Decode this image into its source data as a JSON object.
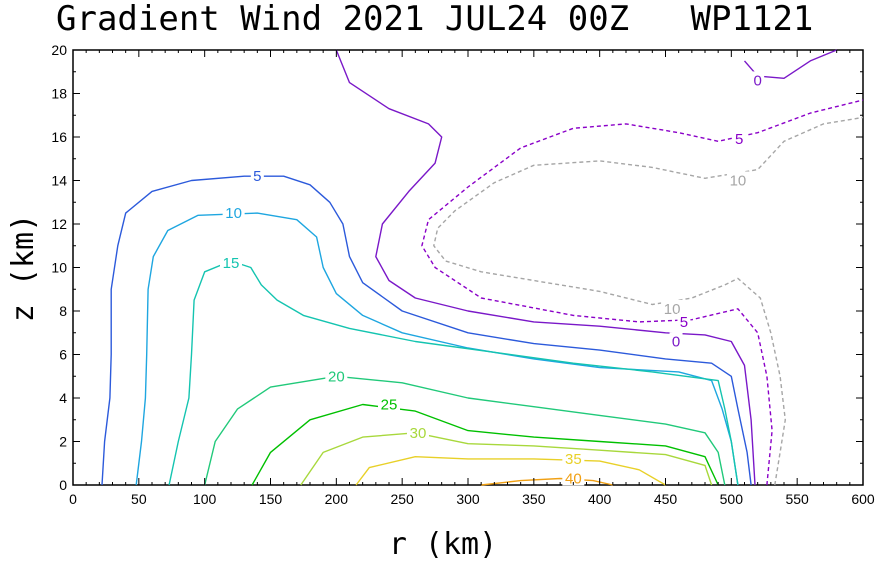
{
  "chart_data": {
    "type": "contour",
    "title": "Gradient Wind 2021 JUL24 00Z   WP1121",
    "xlabel": "r (km)",
    "ylabel": "z (km)",
    "xlim": [
      0,
      600
    ],
    "ylim": [
      0,
      20
    ],
    "x_ticks": [
      0,
      50,
      100,
      150,
      200,
      250,
      300,
      350,
      400,
      450,
      500,
      550,
      600
    ],
    "y_ticks": [
      0,
      2,
      4,
      6,
      8,
      10,
      12,
      14,
      16,
      18,
      20
    ],
    "grid": false,
    "contours": [
      {
        "level": -10,
        "label": "10",
        "color": "#a6a6a6",
        "dashed": true,
        "label_points": [
          [
            455,
            8.1
          ],
          [
            505,
            14.0
          ]
        ],
        "points": [
          [
            533,
            0
          ],
          [
            537,
            1.5
          ],
          [
            541,
            3
          ],
          [
            537,
            5
          ],
          [
            530,
            7
          ],
          [
            522,
            8.6
          ],
          [
            505,
            9.5
          ],
          [
            495,
            9.2
          ],
          [
            470,
            8.6
          ],
          [
            440,
            8.3
          ],
          [
            400,
            8.9
          ],
          [
            360,
            9.3
          ],
          [
            310,
            9.8
          ],
          [
            283,
            10.3
          ],
          [
            274,
            11
          ],
          [
            277,
            11.8
          ],
          [
            290,
            12.6
          ],
          [
            320,
            13.9
          ],
          [
            350,
            14.7
          ],
          [
            400,
            14.9
          ],
          [
            440,
            14.6
          ],
          [
            480,
            14.1
          ],
          [
            520,
            14.5
          ],
          [
            540,
            15.8
          ],
          [
            570,
            16.6
          ],
          [
            600,
            16.9
          ]
        ]
      },
      {
        "level": -5,
        "label": "5",
        "color": "#8a00c8",
        "dashed": true,
        "label_points": [
          [
            464,
            7.5
          ],
          [
            506,
            15.9
          ]
        ],
        "points": [
          [
            527,
            0
          ],
          [
            531,
            2.5
          ],
          [
            527,
            5
          ],
          [
            520,
            7
          ],
          [
            505,
            8.1
          ],
          [
            470,
            7.6
          ],
          [
            430,
            7.5
          ],
          [
            380,
            7.8
          ],
          [
            310,
            8.6
          ],
          [
            275,
            10.0
          ],
          [
            265,
            11.0
          ],
          [
            270,
            12.2
          ],
          [
            300,
            13.7
          ],
          [
            340,
            15.5
          ],
          [
            380,
            16.4
          ],
          [
            420,
            16.6
          ],
          [
            460,
            16.2
          ],
          [
            490,
            15.8
          ],
          [
            520,
            16.2
          ],
          [
            560,
            17.1
          ],
          [
            600,
            17.7
          ]
        ]
      },
      {
        "level": 0,
        "label": "0",
        "color": "#7a18c8",
        "dashed": false,
        "label_points": [
          [
            458,
            6.6
          ],
          [
            520,
            18.6
          ]
        ],
        "points": [
          [
            200,
            20
          ],
          [
            210,
            18.5
          ],
          [
            240,
            17.3
          ],
          [
            270,
            16.6
          ],
          [
            280,
            16.0
          ],
          [
            275,
            14.8
          ],
          [
            255,
            13.5
          ],
          [
            235,
            12.0
          ],
          [
            230,
            10.5
          ],
          [
            240,
            9.4
          ],
          [
            260,
            8.6
          ],
          [
            300,
            8.0
          ],
          [
            350,
            7.5
          ],
          [
            400,
            7.3
          ],
          [
            450,
            7.0
          ],
          [
            480,
            6.9
          ],
          [
            500,
            6.6
          ],
          [
            510,
            5.5
          ],
          [
            515,
            3.0
          ],
          [
            518,
            0
          ],
          null,
          [
            510,
            19.5
          ],
          [
            520,
            18.8
          ],
          [
            540,
            18.7
          ],
          [
            560,
            19.5
          ],
          [
            580,
            20
          ]
        ]
      },
      {
        "level": 5,
        "label": "5",
        "color": "#2c5adb",
        "dashed": false,
        "label_points": [
          [
            140,
            14.2
          ]
        ],
        "points": [
          [
            22,
            0
          ],
          [
            24,
            2
          ],
          [
            28,
            4
          ],
          [
            29,
            6
          ],
          [
            29,
            9
          ],
          [
            34,
            11
          ],
          [
            40,
            12.5
          ],
          [
            60,
            13.5
          ],
          [
            90,
            14.0
          ],
          [
            130,
            14.2
          ],
          [
            160,
            14.2
          ],
          [
            180,
            13.8
          ],
          [
            195,
            13.0
          ],
          [
            205,
            12.0
          ],
          [
            210,
            10.5
          ],
          [
            220,
            9.3
          ],
          [
            250,
            8.0
          ],
          [
            300,
            7.0
          ],
          [
            350,
            6.5
          ],
          [
            400,
            6.2
          ],
          [
            450,
            5.8
          ],
          [
            485,
            5.6
          ],
          [
            500,
            5.0
          ],
          [
            505,
            3.5
          ],
          [
            512,
            1.5
          ],
          [
            515,
            0
          ]
        ]
      },
      {
        "level": 10,
        "label": "10",
        "color": "#1ea6e0",
        "dashed": false,
        "label_points": [
          [
            122,
            12.5
          ]
        ],
        "points": [
          [
            48,
            0
          ],
          [
            52,
            2
          ],
          [
            55,
            4
          ],
          [
            56,
            6
          ],
          [
            57,
            9
          ],
          [
            61,
            10.5
          ],
          [
            72,
            11.7
          ],
          [
            95,
            12.4
          ],
          [
            140,
            12.5
          ],
          [
            170,
            12.2
          ],
          [
            185,
            11.4
          ],
          [
            190,
            10.0
          ],
          [
            200,
            8.8
          ],
          [
            220,
            7.8
          ],
          [
            250,
            7.0
          ],
          [
            300,
            6.3
          ],
          [
            350,
            5.8
          ],
          [
            400,
            5.4
          ],
          [
            460,
            5.2
          ],
          [
            485,
            4.8
          ],
          [
            493,
            3.5
          ],
          [
            500,
            2.0
          ],
          [
            505,
            0
          ]
        ]
      },
      {
        "level": 15,
        "label": "15",
        "color": "#14c4b0",
        "dashed": false,
        "label_points": [
          [
            120,
            10.2
          ]
        ],
        "points": [
          [
            73,
            0
          ],
          [
            80,
            2
          ],
          [
            88,
            4
          ],
          [
            90,
            6
          ],
          [
            92,
            8.5
          ],
          [
            100,
            9.8
          ],
          [
            120,
            10.3
          ],
          [
            135,
            10.0
          ],
          [
            143,
            9.2
          ],
          [
            155,
            8.5
          ],
          [
            175,
            7.8
          ],
          [
            210,
            7.2
          ],
          [
            260,
            6.6
          ],
          [
            320,
            6.1
          ],
          [
            380,
            5.6
          ],
          [
            440,
            5.2
          ],
          [
            490,
            4.8
          ],
          [
            495,
            3.5
          ],
          [
            500,
            2.0
          ],
          [
            505,
            0
          ]
        ]
      },
      {
        "level": 20,
        "label": "20",
        "color": "#21c97a",
        "dashed": false,
        "label_points": [
          [
            200,
            5.0
          ]
        ],
        "points": [
          [
            100,
            0
          ],
          [
            108,
            2
          ],
          [
            125,
            3.5
          ],
          [
            150,
            4.5
          ],
          [
            200,
            5.0
          ],
          [
            250,
            4.7
          ],
          [
            300,
            4.0
          ],
          [
            350,
            3.6
          ],
          [
            400,
            3.2
          ],
          [
            450,
            2.8
          ],
          [
            480,
            2.4
          ],
          [
            490,
            1.5
          ],
          [
            495,
            0
          ]
        ]
      },
      {
        "level": 25,
        "label": "25",
        "color": "#00c000",
        "dashed": false,
        "label_points": [
          [
            240,
            3.7
          ]
        ],
        "points": [
          [
            136,
            0
          ],
          [
            150,
            1.5
          ],
          [
            180,
            3.0
          ],
          [
            220,
            3.7
          ],
          [
            260,
            3.4
          ],
          [
            300,
            2.5
          ],
          [
            350,
            2.2
          ],
          [
            400,
            2.0
          ],
          [
            450,
            1.8
          ],
          [
            480,
            1.3
          ],
          [
            490,
            0
          ]
        ]
      },
      {
        "level": 30,
        "label": "30",
        "color": "#a8d83c",
        "dashed": false,
        "label_points": [
          [
            262,
            2.4
          ]
        ],
        "points": [
          [
            173,
            0
          ],
          [
            190,
            1.5
          ],
          [
            220,
            2.2
          ],
          [
            260,
            2.4
          ],
          [
            300,
            1.9
          ],
          [
            350,
            1.8
          ],
          [
            400,
            1.6
          ],
          [
            450,
            1.4
          ],
          [
            480,
            0.9
          ],
          [
            485,
            0
          ]
        ]
      },
      {
        "level": 35,
        "label": "35",
        "color": "#e8d028",
        "dashed": false,
        "label_points": [
          [
            380,
            1.2
          ]
        ],
        "points": [
          [
            215,
            0
          ],
          [
            225,
            0.8
          ],
          [
            260,
            1.3
          ],
          [
            300,
            1.2
          ],
          [
            350,
            1.2
          ],
          [
            400,
            1.1
          ],
          [
            430,
            0.7
          ],
          [
            450,
            0
          ]
        ]
      },
      {
        "level": 40,
        "label": "40",
        "color": "#f0a014",
        "dashed": false,
        "label_points": [
          [
            380,
            0.3
          ]
        ],
        "points": [
          [
            310,
            0
          ],
          [
            340,
            0.2
          ],
          [
            370,
            0.3
          ],
          [
            395,
            0.2
          ],
          [
            410,
            0
          ]
        ]
      }
    ]
  }
}
